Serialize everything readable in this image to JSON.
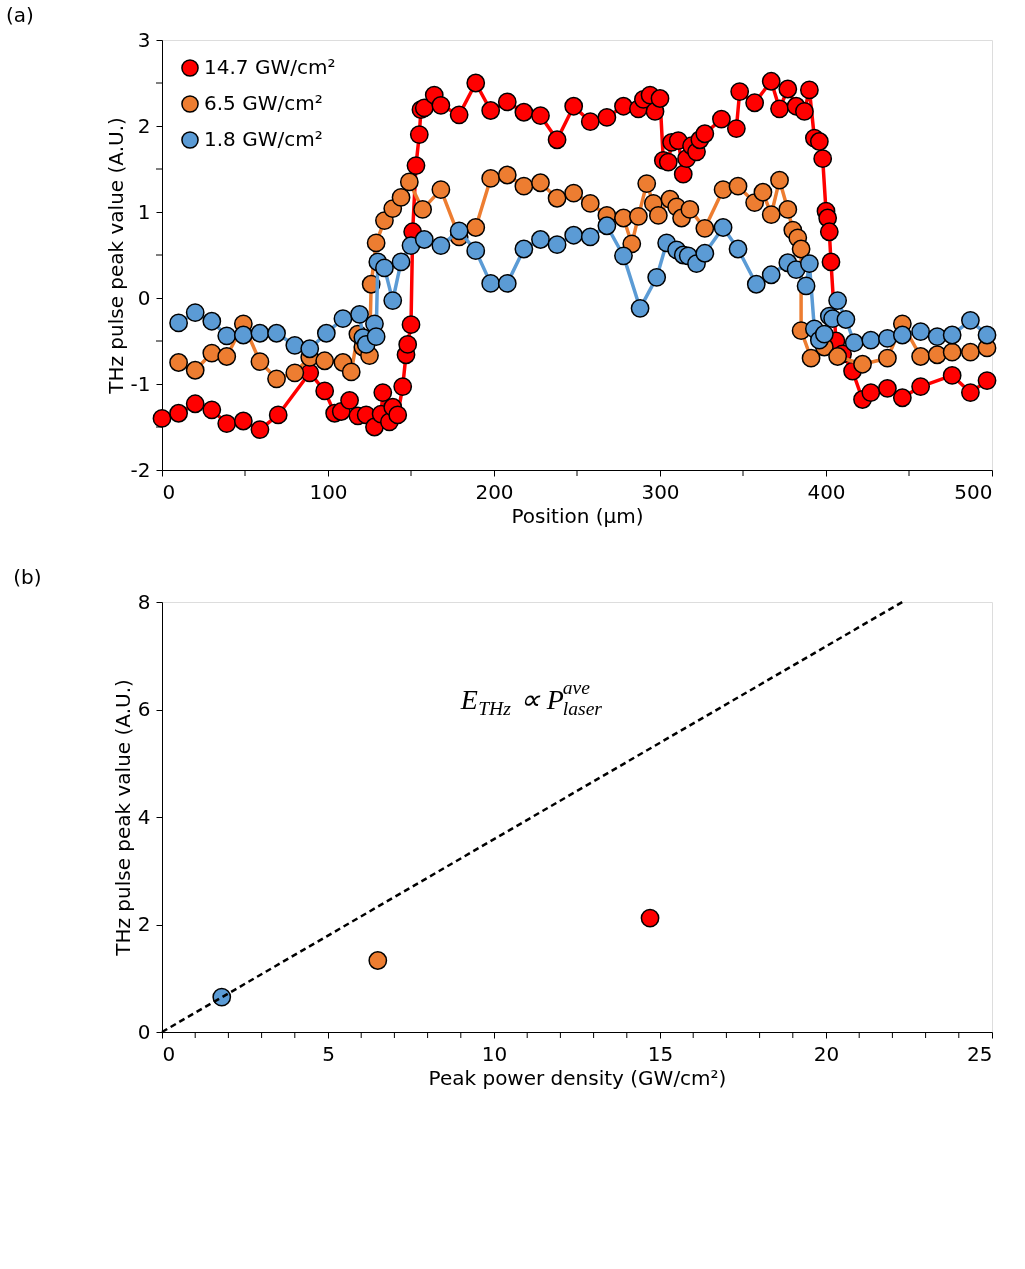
{
  "chart_data": [
    {
      "type": "line",
      "annotations": [
        "(a)"
      ],
      "xlabel": "Position (μm)",
      "ylabel": "THz pulse peak value (A.U.)",
      "xlim": [
        0,
        500
      ],
      "xticks": [
        0,
        {
          "value": 50,
          "label": null
        },
        100,
        {
          "value": 150,
          "label": null
        },
        200,
        {
          "value": 250,
          "label": null
        },
        300,
        {
          "value": 350,
          "label": null
        },
        400,
        {
          "value": 450,
          "label": null
        },
        500
      ],
      "ylim": [
        -2,
        3
      ],
      "yticks": [
        -2,
        {
          "value": -1.5,
          "label": null
        },
        -1,
        {
          "value": -0.5,
          "label": null
        },
        0,
        {
          "value": 0.5,
          "label": null
        },
        1,
        {
          "value": 1.5,
          "label": null
        },
        2,
        {
          "value": 2.5,
          "label": null
        },
        3
      ],
      "grid": false,
      "legend": "top left",
      "marker": "circle",
      "line_style": "solid",
      "series": [
        {
          "name": "14.7 GW/cm²",
          "color": "#ff0000",
          "x": [
            0,
            10,
            20,
            30,
            39,
            49,
            59,
            70,
            89,
            98,
            104,
            108,
            113,
            118,
            123,
            128,
            132,
            133,
            137,
            139,
            142,
            145,
            147,
            148,
            150,
            151,
            153,
            155,
            156,
            158,
            164,
            168,
            179,
            189,
            198,
            208,
            218,
            228,
            238,
            248,
            258,
            268,
            278,
            287,
            290,
            294,
            297,
            300,
            302,
            305,
            307,
            311,
            314,
            316,
            319,
            322,
            324,
            327,
            337,
            346,
            348,
            357,
            367,
            372,
            377,
            382,
            387,
            390,
            393,
            396,
            398,
            400,
            401,
            402,
            403,
            406,
            410,
            416,
            422,
            427,
            437,
            446,
            457,
            476,
            487,
            497
          ],
          "values": [
            -1.4,
            -1.34,
            -1.23,
            -1.3,
            -1.46,
            -1.43,
            -1.53,
            -1.36,
            -0.87,
            -1.08,
            -1.34,
            -1.32,
            -1.19,
            -1.37,
            -1.36,
            -1.5,
            -1.35,
            -1.1,
            -1.44,
            -1.27,
            -1.36,
            -1.03,
            -0.66,
            -0.54,
            -0.31,
            0.77,
            1.54,
            1.9,
            2.19,
            2.21,
            2.36,
            2.24,
            2.13,
            2.5,
            2.18,
            2.28,
            2.16,
            2.12,
            1.84,
            2.23,
            2.05,
            2.1,
            2.23,
            2.2,
            2.31,
            2.36,
            2.17,
            2.32,
            1.6,
            1.58,
            1.81,
            1.83,
            1.44,
            1.62,
            1.77,
            1.7,
            1.84,
            1.91,
            2.08,
            1.97,
            2.4,
            2.27,
            2.52,
            2.2,
            2.43,
            2.23,
            2.17,
            2.42,
            1.86,
            1.82,
            1.62,
            1.01,
            0.93,
            0.77,
            0.42,
            -0.5,
            -0.65,
            -0.85,
            -1.18,
            -1.1,
            -1.05,
            -1.16,
            -1.03,
            -0.9,
            -1.1,
            -0.96
          ]
        },
        {
          "name": "6.5 GW/cm²",
          "color": "#ed7d31",
          "x": [
            10,
            20,
            30,
            39,
            49,
            59,
            69,
            80,
            89,
            98,
            109,
            114,
            118,
            121,
            125,
            126,
            129,
            134,
            139,
            144,
            149,
            157,
            168,
            179,
            189,
            198,
            208,
            218,
            228,
            238,
            248,
            258,
            268,
            278,
            283,
            287,
            292,
            296,
            299,
            306,
            310,
            313,
            318,
            327,
            338,
            347,
            357,
            362,
            367,
            372,
            377,
            380,
            383,
            385,
            385,
            391,
            399,
            407,
            422,
            437,
            446,
            457,
            467,
            476,
            487,
            497
          ],
          "values": [
            -0.75,
            -0.84,
            -0.64,
            -0.68,
            -0.3,
            -0.74,
            -0.94,
            -0.87,
            -0.69,
            -0.73,
            -0.75,
            -0.86,
            -0.42,
            -0.57,
            -0.67,
            0.16,
            0.64,
            0.9,
            1.04,
            1.17,
            1.35,
            1.03,
            1.26,
            0.71,
            0.82,
            1.39,
            1.43,
            1.3,
            1.34,
            1.16,
            1.22,
            1.1,
            0.96,
            0.93,
            0.63,
            0.95,
            1.33,
            1.1,
            0.96,
            1.15,
            1.06,
            0.93,
            1.03,
            0.81,
            1.26,
            1.3,
            1.11,
            1.23,
            0.97,
            1.37,
            1.03,
            0.79,
            0.7,
            0.57,
            -0.38,
            -0.7,
            -0.57,
            -0.68,
            -0.77,
            -0.7,
            -0.3,
            -0.68,
            -0.66,
            -0.63,
            -0.63,
            -0.58
          ]
        },
        {
          "name": "1.8 GW/cm²",
          "color": "#5b9bd5",
          "x": [
            10,
            20,
            30,
            39,
            49,
            59,
            69,
            80,
            89,
            99,
            109,
            119,
            121,
            123,
            128,
            129,
            130,
            134,
            139,
            144,
            150,
            158,
            168,
            179,
            189,
            198,
            208,
            218,
            228,
            238,
            248,
            258,
            268,
            278,
            288,
            298,
            304,
            310,
            314,
            317,
            322,
            327,
            338,
            347,
            358,
            367,
            377,
            382,
            388,
            390,
            393,
            396,
            399,
            402,
            404,
            407,
            412,
            417,
            427,
            437,
            446,
            457,
            467,
            476,
            487,
            497
          ],
          "values": [
            -0.29,
            -0.17,
            -0.27,
            -0.44,
            -0.43,
            -0.41,
            -0.41,
            -0.55,
            -0.59,
            -0.41,
            -0.24,
            -0.19,
            -0.46,
            -0.54,
            -0.3,
            -0.45,
            0.42,
            0.35,
            -0.03,
            0.42,
            0.61,
            0.68,
            0.61,
            0.78,
            0.55,
            0.17,
            0.17,
            0.57,
            0.68,
            0.62,
            0.73,
            0.71,
            0.84,
            0.49,
            -0.12,
            0.24,
            0.64,
            0.56,
            0.5,
            0.49,
            0.4,
            0.52,
            0.82,
            0.57,
            0.16,
            0.27,
            0.41,
            0.33,
            0.14,
            0.4,
            -0.36,
            -0.49,
            -0.42,
            -0.21,
            -0.24,
            -0.03,
            -0.25,
            -0.52,
            -0.49,
            -0.47,
            -0.43,
            -0.39,
            -0.45,
            -0.43,
            -0.26,
            -0.43
          ]
        }
      ]
    },
    {
      "type": "scatter",
      "annotations": [
        "(b)",
        "E$_{THz}$ ∝ P$^{ave}$$_{laser}$"
      ],
      "xlabel": "Peak power density (GW/cm²)",
      "ylabel": "THz pulse peak value (A.U.)",
      "xlim": [
        0,
        25
      ],
      "xticks": [
        0,
        {
          "value": 1,
          "label": null
        },
        {
          "value": 2,
          "label": null
        },
        {
          "value": 3,
          "label": null
        },
        {
          "value": 4,
          "label": null
        },
        5,
        {
          "value": 6,
          "label": null
        },
        {
          "value": 7,
          "label": null
        },
        {
          "value": 8,
          "label": null
        },
        {
          "value": 9,
          "label": null
        },
        10,
        {
          "value": 11,
          "label": null
        },
        {
          "value": 12,
          "label": null
        },
        {
          "value": 13,
          "label": null
        },
        {
          "value": 14,
          "label": null
        },
        15,
        {
          "value": 16,
          "label": null
        },
        {
          "value": 17,
          "label": null
        },
        {
          "value": 18,
          "label": null
        },
        {
          "value": 19,
          "label": null
        },
        20,
        {
          "value": 21,
          "label": null
        },
        {
          "value": 22,
          "label": null
        },
        {
          "value": 23,
          "label": null
        },
        {
          "value": 24,
          "label": null
        },
        25
      ],
      "ylim": [
        0,
        8
      ],
      "yticks": [
        0,
        2,
        4,
        6,
        8
      ],
      "grid": false,
      "legend": false,
      "marker": "circle",
      "series": [
        {
          "type": "scatter",
          "x": [
            1.8,
            6.5,
            14.7
          ],
          "values": [
            0.65,
            1.33,
            2.12
          ],
          "colors": [
            "#5b9bd5",
            "#ed7d31",
            "#ff0000"
          ]
        },
        {
          "type": "line",
          "x": [
            0,
            22.3
          ],
          "values": [
            0,
            8
          ],
          "color": "#000000",
          "line_style": "dashed",
          "marker": "none"
        }
      ]
    }
  ]
}
